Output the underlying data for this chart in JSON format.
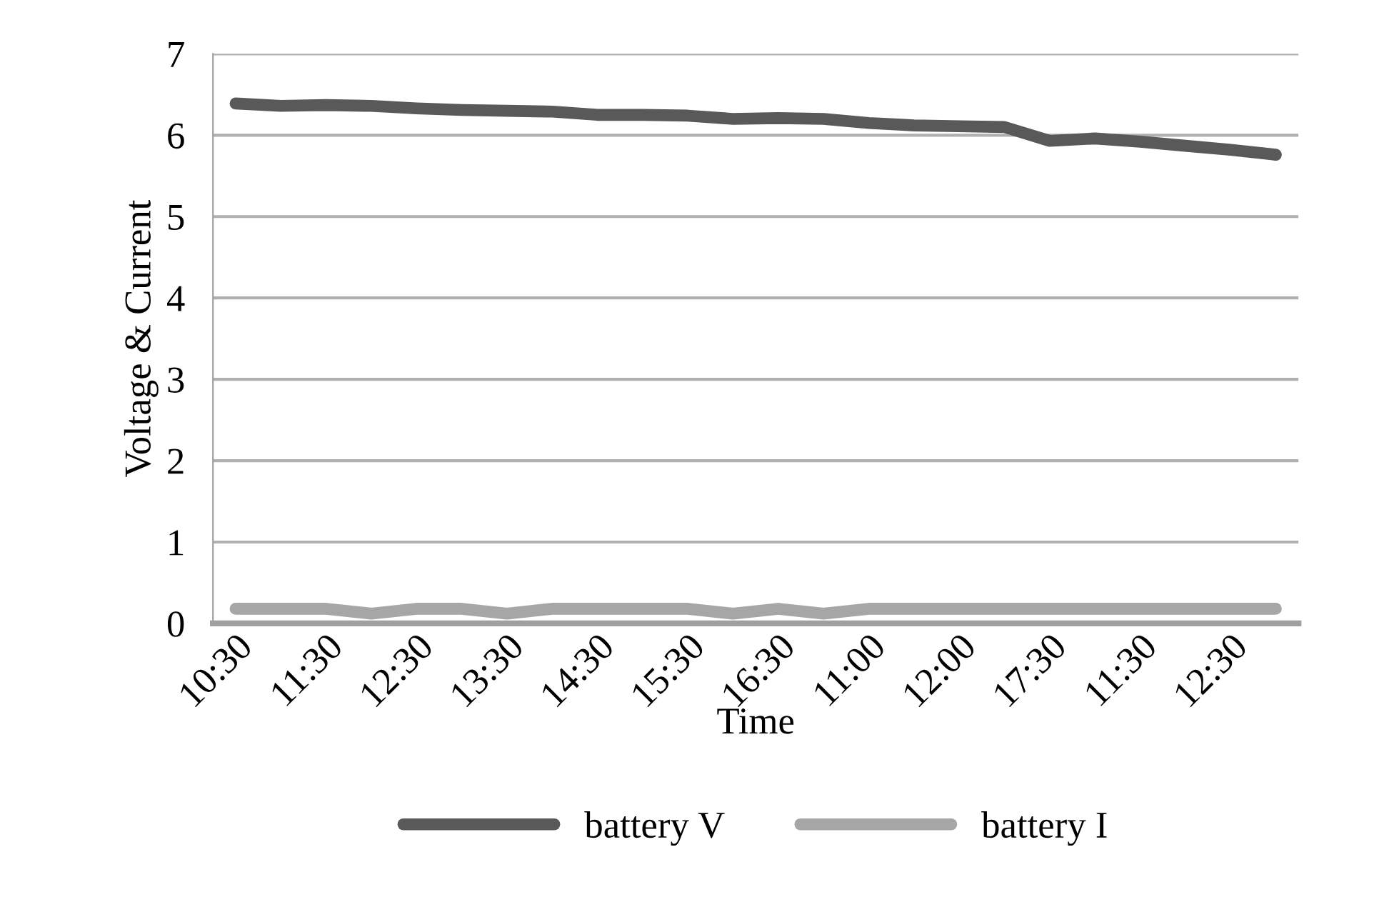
{
  "chart_data": {
    "type": "line",
    "xlabel": "Time",
    "ylabel": "Voltage & Current",
    "categories": [
      "10:30",
      null,
      "11:30",
      null,
      "12:30",
      null,
      "13:30",
      null,
      "14:30",
      null,
      "15:30",
      null,
      "16:30",
      null,
      "11:00",
      null,
      "12:00",
      null,
      "17:30",
      null,
      "11:30",
      null,
      "12:30",
      null
    ],
    "series": [
      {
        "name": "battery V",
        "color": "#595959",
        "values": [
          6.39,
          6.36,
          6.37,
          6.36,
          6.33,
          6.31,
          6.3,
          6.29,
          6.25,
          6.25,
          6.24,
          6.2,
          6.21,
          6.2,
          6.15,
          6.12,
          6.11,
          6.1,
          5.93,
          5.96,
          5.92,
          5.87,
          5.82,
          5.76
        ]
      },
      {
        "name": "battery I",
        "color": "#a6a6a6",
        "values": [
          0.18,
          0.18,
          0.18,
          0.12,
          0.18,
          0.18,
          0.12,
          0.18,
          0.18,
          0.18,
          0.18,
          0.12,
          0.18,
          0.12,
          0.18,
          0.18,
          0.18,
          0.18,
          0.18,
          0.18,
          0.18,
          0.18,
          0.18,
          0.18
        ]
      }
    ],
    "ylim": [
      0,
      7
    ],
    "yticks": [
      0,
      1,
      2,
      3,
      4,
      5,
      6,
      7
    ],
    "grid": "y",
    "legend": "bottom",
    "marker": "none",
    "line_style": "solid"
  }
}
